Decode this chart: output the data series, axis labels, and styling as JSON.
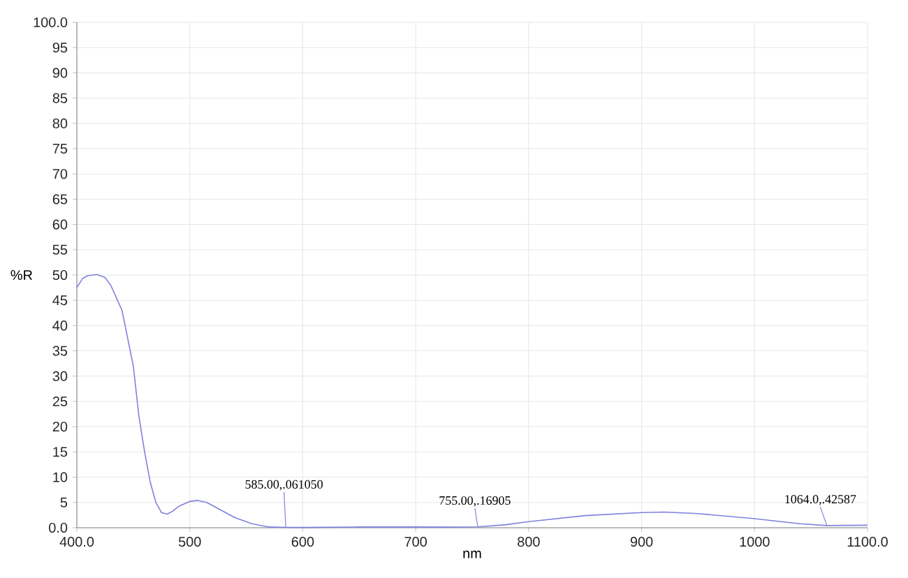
{
  "chart_data": {
    "type": "line",
    "xlabel": "nm",
    "ylabel": "%R",
    "x": [
      400,
      405,
      410,
      418,
      425,
      430,
      440,
      450,
      455,
      460,
      465,
      470,
      475,
      480,
      485,
      490,
      500,
      507,
      515,
      525,
      540,
      555,
      570,
      585,
      600,
      650,
      700,
      730,
      755,
      780,
      800,
      850,
      900,
      920,
      950,
      1000,
      1040,
      1064,
      1100
    ],
    "series": [
      {
        "color": "#8080e0",
        "values": [
          47.5,
          49.3,
          49.9,
          50.1,
          49.5,
          48,
          43,
          32,
          22,
          15,
          9,
          5,
          3,
          2.7,
          3.3,
          4.2,
          5.2,
          5.4,
          5,
          3.8,
          2,
          0.8,
          0.15,
          0.06,
          0.05,
          0.15,
          0.15,
          0.12,
          0.17,
          0.6,
          1.2,
          2.4,
          3.0,
          3.1,
          2.8,
          1.8,
          0.8,
          0.43,
          0.5
        ]
      }
    ],
    "xlim": [
      400,
      1100
    ],
    "ylim": [
      0,
      100
    ],
    "xticks": [
      {
        "value": 400,
        "label": "400.0"
      },
      500,
      600,
      700,
      800,
      900,
      1000,
      {
        "value": 1100,
        "label": "1100.0"
      }
    ],
    "yticks": [
      {
        "value": 0,
        "label": "0.0"
      },
      5,
      10,
      15,
      20,
      25,
      30,
      35,
      40,
      45,
      50,
      55,
      60,
      65,
      70,
      75,
      80,
      85,
      90,
      95,
      {
        "value": 100,
        "label": "100.0"
      }
    ],
    "grid": true,
    "marker": "none",
    "line_style": "solid",
    "annotations": [
      {
        "text": "585.00,.061050",
        "x": 585,
        "y": 0.06105
      },
      {
        "text": "755.00,.16905",
        "x": 755,
        "y": 0.16905
      },
      {
        "text": "1064.0,.42587",
        "x": 1064,
        "y": 0.42587
      }
    ]
  }
}
